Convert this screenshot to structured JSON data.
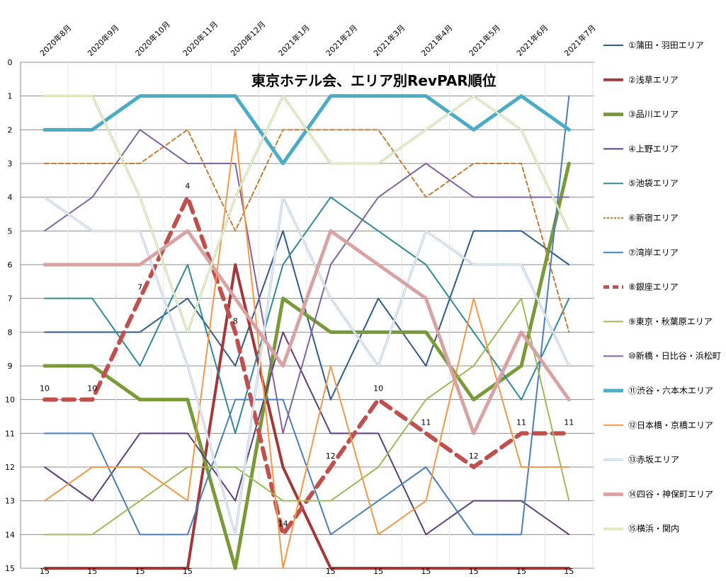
{
  "chart_data": {
    "type": "line",
    "title": "東京ホテル会、エリア別RevPAR順位",
    "categories": [
      "2020年8月",
      "2020年9月",
      "2020年10月",
      "2020年11月",
      "2020年12月",
      "2021年1月",
      "2021年2月",
      "2021年3月",
      "2021年4月",
      "2021年5月",
      "2021年6月",
      "2021年7月"
    ],
    "ylim": [
      15,
      0
    ],
    "yticks": [
      "0",
      "1",
      "2",
      "3",
      "4",
      "5",
      "6",
      "7",
      "8",
      "9",
      "10",
      "11",
      "12",
      "13",
      "14",
      "15"
    ],
    "grid": true,
    "legend_position": "right",
    "series": [
      {
        "name": "①蒲田・羽田エリア",
        "color": "#2E5A8C",
        "width": 2,
        "dash": "",
        "values": [
          8,
          8,
          8,
          7,
          9,
          5,
          10,
          7,
          9,
          5,
          5,
          6
        ]
      },
      {
        "name": "②浅草エリア",
        "color": "#A3373A",
        "width": 4,
        "dash": "",
        "values": [
          15,
          15,
          15,
          15,
          6,
          12,
          15,
          15,
          15,
          15,
          15,
          15
        ]
      },
      {
        "name": "③品川エリア",
        "color": "#7A9A3A",
        "width": 5,
        "dash": "",
        "values": [
          9,
          9,
          10,
          10,
          15,
          7,
          8,
          8,
          8,
          10,
          9,
          3
        ]
      },
      {
        "name": "④上野エリア",
        "color": "#5C3F7A",
        "width": 2,
        "dash": "",
        "values": [
          12,
          13,
          11,
          11,
          13,
          8,
          11,
          11,
          14,
          13,
          13,
          14
        ]
      },
      {
        "name": "⑤池袋エリア",
        "color": "#2E8A96",
        "width": 2,
        "dash": "",
        "values": [
          7,
          7,
          9,
          6,
          11,
          6,
          4,
          5,
          6,
          8,
          10,
          7
        ]
      },
      {
        "name": "⑥新宿エリア",
        "color": "#C77A30",
        "width": 2,
        "dash": "6,4",
        "values": [
          3,
          3,
          3,
          2,
          5,
          2,
          2,
          2,
          4,
          3,
          3,
          8
        ]
      },
      {
        "name": "⑦湾岸エリア",
        "color": "#4A7EBB",
        "width": 2,
        "dash": "",
        "values": [
          11,
          11,
          14,
          14,
          10,
          10,
          14,
          13,
          12,
          14,
          14,
          1
        ]
      },
      {
        "name": "⑧銀座エリア",
        "color": "#C0504D",
        "width": 6,
        "dash": "16,10",
        "values": [
          10,
          10,
          7,
          4,
          8,
          14,
          12,
          10,
          11,
          12,
          11,
          11
        ],
        "labels": [
          "10",
          "10",
          "7",
          "4",
          "8",
          "14",
          "12",
          "10",
          "11",
          "12",
          "11",
          "11"
        ]
      },
      {
        "name": "⑨東京・秋葉原エリア",
        "color": "#9BBB59",
        "width": 2,
        "dash": "",
        "values": [
          14,
          14,
          13,
          12,
          12,
          13,
          13,
          12,
          10,
          9,
          7,
          13
        ]
      },
      {
        "name": "⑩新橋・日比谷・浜松町",
        "color": "#8064A2",
        "width": 2,
        "dash": "",
        "values": [
          5,
          4,
          2,
          3,
          3,
          11,
          6,
          4,
          3,
          4,
          4,
          4
        ]
      },
      {
        "name": "⑪渋谷・六本木エリア",
        "color": "#4BACC6",
        "width": 5,
        "dash": "",
        "values": [
          2,
          2,
          1,
          1,
          1,
          3,
          1,
          1,
          1,
          2,
          1,
          2
        ]
      },
      {
        "name": "⑫日本橋・京橋エリア",
        "color": "#F79646",
        "width": 2,
        "dash": "",
        "values": [
          13,
          12,
          12,
          13,
          2,
          15,
          9,
          14,
          13,
          7,
          12,
          12
        ]
      },
      {
        "name": "⑬赤坂エリア",
        "color": "#B9C8E2",
        "width": 3,
        "dash": "",
        "double": true,
        "values": [
          4,
          5,
          5,
          9,
          14,
          4,
          7,
          9,
          5,
          6,
          6,
          9
        ]
      },
      {
        "name": "⑭四谷・神保町エリア",
        "color": "#D9A3A3",
        "width": 5,
        "dash": "",
        "values": [
          6,
          6,
          6,
          5,
          7,
          9,
          5,
          6,
          7,
          11,
          8,
          10
        ]
      },
      {
        "name": "⑮横浜・関内",
        "color": "#C4D79B",
        "width": 3,
        "dash": "",
        "double": true,
        "values": [
          1,
          1,
          4,
          8,
          4,
          1,
          3,
          3,
          2,
          1,
          2,
          5
        ]
      }
    ]
  }
}
